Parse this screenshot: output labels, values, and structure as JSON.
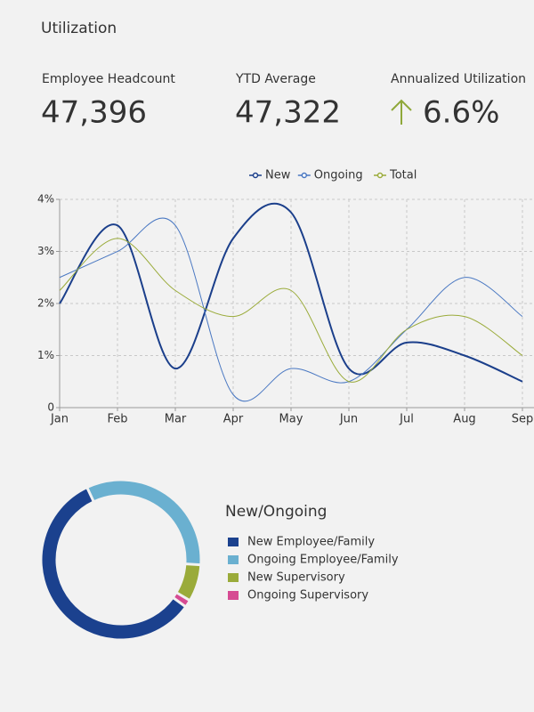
{
  "header": {
    "title": "Utilization"
  },
  "kpis": [
    {
      "label": "Employee Headcount",
      "value": "47,396",
      "color": "#7a73b6"
    },
    {
      "label": "YTD Average",
      "value": "47,322",
      "color": "#1a2747"
    },
    {
      "label": "Annualized Utilization",
      "value": "6.6%",
      "color": "#333333"
    }
  ],
  "chart_data": [
    {
      "type": "line",
      "categories": [
        "Jan",
        "Feb",
        "Mar",
        "Apr",
        "May",
        "Jun",
        "Jul",
        "Aug",
        "Sep"
      ],
      "series": [
        {
          "name": "New",
          "color": "#1b3f8b",
          "values": [
            2.0,
            3.5,
            0.75,
            3.25,
            3.75,
            0.75,
            1.25,
            1.0,
            0.5
          ]
        },
        {
          "name": "Ongoing",
          "color": "#4a78c2",
          "values": [
            2.5,
            3.0,
            3.5,
            0.25,
            0.75,
            0.5,
            1.5,
            2.5,
            1.75
          ]
        },
        {
          "name": "Total",
          "color": "#9aab3a",
          "values": [
            2.25,
            3.25,
            2.25,
            1.75,
            2.25,
            0.5,
            1.5,
            1.75,
            1.0
          ]
        }
      ],
      "ylim": [
        0,
        4
      ],
      "yticks": [
        0,
        {
          "value": 1,
          "label": "1%"
        },
        {
          "value": 2,
          "label": "2%"
        },
        {
          "value": 3,
          "label": "3%"
        },
        {
          "value": 4,
          "label": "4%"
        }
      ],
      "grid": true,
      "legend": "top"
    },
    {
      "type": "donut",
      "title": "New/Ongoing",
      "categories": [
        "New Employee/Family",
        "Ongoing Employee/Family",
        "New Supervisory",
        "Ongoing Supervisory"
      ],
      "values": [
        58,
        33,
        7.5,
        1.5
      ],
      "colors": [
        "#1b418e",
        "#6ab0d0",
        "#9aab3a",
        "#d64b93"
      ],
      "legend": "right"
    }
  ]
}
